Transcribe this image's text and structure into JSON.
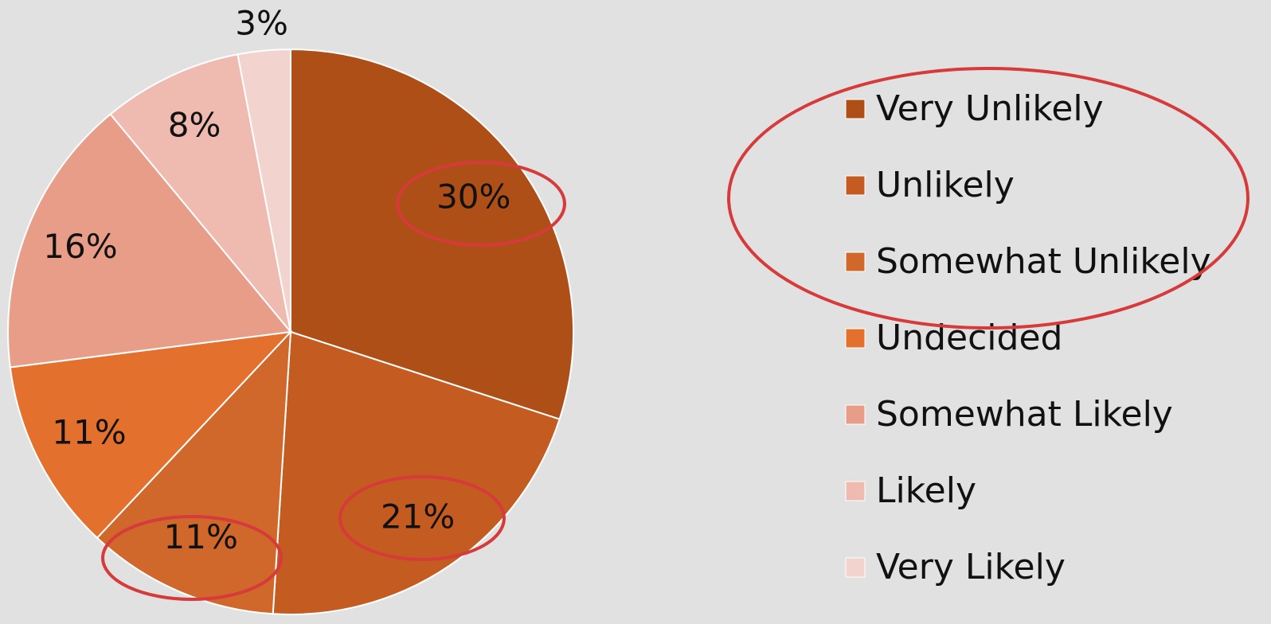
{
  "chart_data": {
    "type": "pie",
    "categories": [
      "Very Unlikely",
      "Unlikely",
      "Somewhat Unlikely",
      "Undecided",
      "Somewhat Likely",
      "Likely",
      "Very Likely"
    ],
    "values": [
      30,
      21,
      11,
      11,
      16,
      8,
      3
    ],
    "value_labels": [
      "30%",
      "21%",
      "11%",
      "11%",
      "16%",
      "8%",
      "3%"
    ],
    "colors": [
      "#af4f18",
      "#c45b21",
      "#d0682b",
      "#e4702e",
      "#e89d88",
      "#efbbb1",
      "#f3d3cd"
    ],
    "legend": "right"
  }
}
